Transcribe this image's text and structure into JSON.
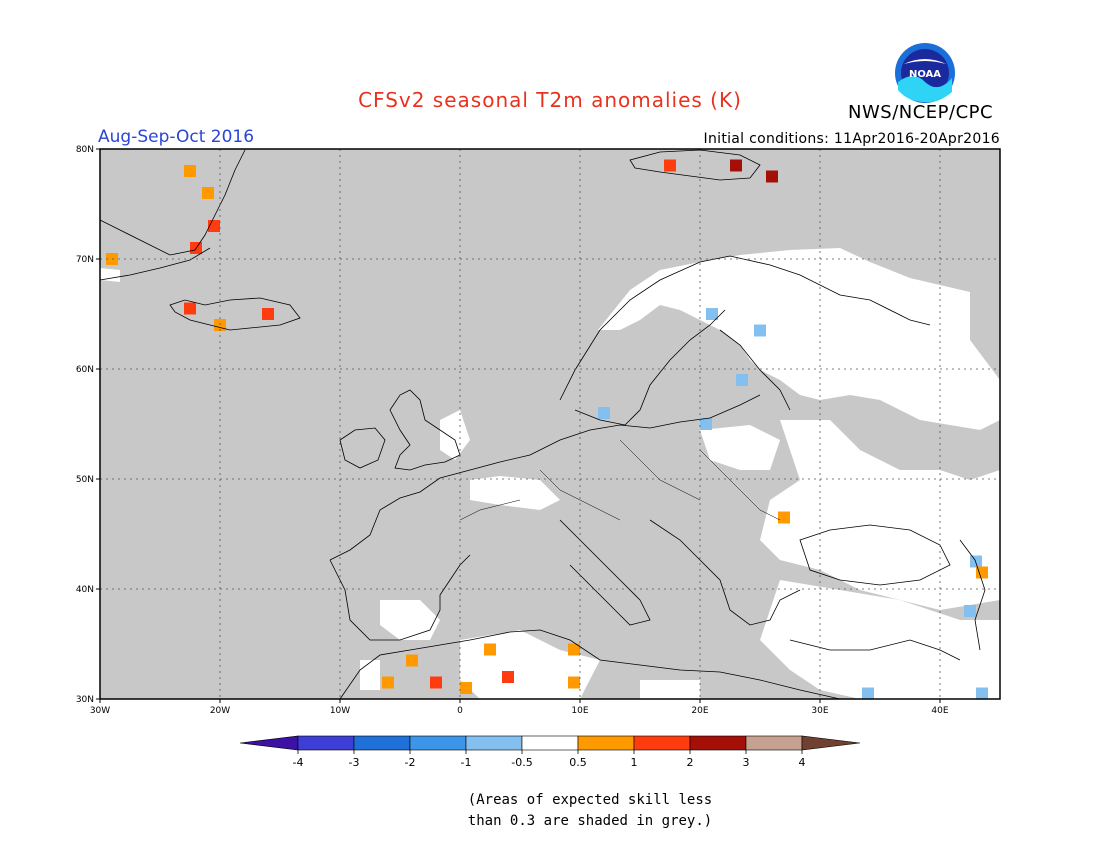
{
  "header": {
    "title": "CFSv2 seasonal T2m anomalies (K)",
    "org": "NWS/NCEP/CPC",
    "logo_text": "NOAA",
    "season": "Aug-Sep-Oct 2016",
    "initial_conditions": "Initial conditions: 11Apr2016-20Apr2016"
  },
  "map": {
    "lon_range": [
      -30,
      45
    ],
    "lat_range": [
      30,
      80
    ],
    "lat_ticks": [
      {
        "value": 80,
        "label": "80N"
      },
      {
        "value": 70,
        "label": "70N"
      },
      {
        "value": 60,
        "label": "60N"
      },
      {
        "value": 50,
        "label": "50N"
      },
      {
        "value": 40,
        "label": "40N"
      },
      {
        "value": 30,
        "label": "30N"
      }
    ],
    "lon_ticks": [
      {
        "value": -30,
        "label": "30W"
      },
      {
        "value": -20,
        "label": "20W"
      },
      {
        "value": -10,
        "label": "10W"
      },
      {
        "value": 0,
        "label": "0"
      },
      {
        "value": 10,
        "label": "10E"
      },
      {
        "value": 20,
        "label": "20E"
      },
      {
        "value": 30,
        "label": "30E"
      },
      {
        "value": 40,
        "label": "40E"
      }
    ],
    "background_color": "#c8c8c8",
    "anomalies": [
      {
        "lon": -22.5,
        "lat": 78,
        "level": "0.5-1"
      },
      {
        "lon": -21,
        "lat": 76,
        "level": "0.5-1"
      },
      {
        "lon": -20.5,
        "lat": 73,
        "level": "1-2"
      },
      {
        "lon": -22,
        "lat": 71,
        "level": "1-2"
      },
      {
        "lon": -29,
        "lat": 70,
        "level": "0.5-1"
      },
      {
        "lon": -22.5,
        "lat": 65.5,
        "level": "1-2"
      },
      {
        "lon": -16,
        "lat": 65,
        "level": "1-2"
      },
      {
        "lon": -20,
        "lat": 64,
        "level": "0.5-1"
      },
      {
        "lon": 17.5,
        "lat": 78.5,
        "level": "1-2"
      },
      {
        "lon": 23,
        "lat": 78.5,
        "level": "2-3"
      },
      {
        "lon": 26,
        "lat": 77.5,
        "level": "2-3"
      },
      {
        "lon": 21,
        "lat": 65,
        "level": "-1--0.5"
      },
      {
        "lon": 25,
        "lat": 63.5,
        "level": "-1--0.5"
      },
      {
        "lon": 23.5,
        "lat": 59,
        "level": "-1--0.5"
      },
      {
        "lon": 12,
        "lat": 56,
        "level": "-1--0.5"
      },
      {
        "lon": 20.5,
        "lat": 55,
        "level": "-1--0.5"
      },
      {
        "lon": 27,
        "lat": 46.5,
        "level": "0.5-1"
      },
      {
        "lon": 43,
        "lat": 42.5,
        "level": "-1--0.5"
      },
      {
        "lon": 43.5,
        "lat": 41.5,
        "level": "0.5-1"
      },
      {
        "lon": 42.5,
        "lat": 38,
        "level": "-1--0.5"
      },
      {
        "lon": -6,
        "lat": 31.5,
        "level": "0.5-1"
      },
      {
        "lon": -4,
        "lat": 33.5,
        "level": "0.5-1"
      },
      {
        "lon": -2,
        "lat": 31.5,
        "level": "1-2"
      },
      {
        "lon": 0.5,
        "lat": 31,
        "level": "0.5-1"
      },
      {
        "lon": 2.5,
        "lat": 34.5,
        "level": "0.5-1"
      },
      {
        "lon": 4,
        "lat": 32,
        "level": "1-2"
      },
      {
        "lon": 9.5,
        "lat": 31.5,
        "level": "0.5-1"
      },
      {
        "lon": 9.5,
        "lat": 34.5,
        "level": "0.5-1"
      },
      {
        "lon": 34,
        "lat": 30.5,
        "level": "-1--0.5"
      },
      {
        "lon": 43.5,
        "lat": 30.5,
        "level": "-1--0.5"
      }
    ]
  },
  "legend": {
    "tick_labels": [
      "-4",
      "-3",
      "-2",
      "-1",
      "-0.5",
      "0.5",
      "1",
      "2",
      "3",
      "4"
    ],
    "colors": [
      "#3d10a6",
      "#3e3ed6",
      "#1f70d8",
      "#3d95e8",
      "#84c0ef",
      "#ffffff",
      "#ff9900",
      "#ff3c10",
      "#a41008",
      "#c7a190",
      "#704030"
    ]
  },
  "note": {
    "line1": "(Areas of expected skill less",
    "line2": "than 0.3 are shaded in grey.)"
  },
  "anomaly_colors": {
    "-1--0.5": "#84c0ef",
    "0.5-1": "#ff9900",
    "1-2": "#ff3c10",
    "2-3": "#a41008"
  },
  "land_color": "#ffffff"
}
